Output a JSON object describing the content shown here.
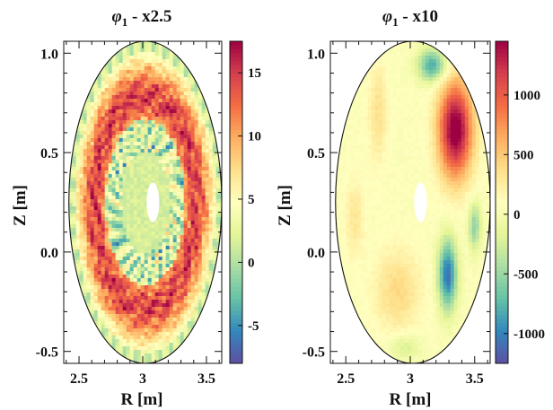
{
  "chart_data": [
    {
      "type": "heatmap",
      "title_symbol": "φ",
      "title_subscript": "1",
      "title_suffix": " - x2.5",
      "xlabel": "R [m]",
      "ylabel": "Z [m]",
      "xlim": [
        2.38,
        3.62
      ],
      "ylim": [
        -0.56,
        1.06
      ],
      "xticks": [
        2.5,
        3.0,
        3.5
      ],
      "xtick_labels": [
        "2.5",
        "3",
        "3.5"
      ],
      "yticks": [
        -0.5,
        0.0,
        0.5,
        1.0
      ],
      "ytick_labels": [
        "-0.5",
        "0.0",
        "0.5",
        "1.0"
      ],
      "colorbar": {
        "min": -8,
        "max": 17.5,
        "ticks": [
          -5,
          0,
          5,
          10,
          15
        ],
        "tick_labels": [
          "-5",
          "0",
          "5",
          "10",
          "15"
        ]
      },
      "colormap": "Spectral_r",
      "pattern": "ring",
      "domain": {
        "center_R": 3.02,
        "center_Z": 0.25,
        "half_width_R": 0.6,
        "half_height_Z": 0.81,
        "hole_R": 3.08,
        "hole_Z": 0.25,
        "hole_half_width": 0.05,
        "hole_half_height": 0.1
      }
    },
    {
      "type": "heatmap",
      "title_symbol": "φ",
      "title_subscript": "1",
      "title_suffix": " - x10",
      "xlabel": "R [m]",
      "ylabel": "Z [m]",
      "xlim": [
        2.38,
        3.62
      ],
      "ylim": [
        -0.56,
        1.06
      ],
      "xticks": [
        2.5,
        3.0,
        3.5
      ],
      "xtick_labels": [
        "2.5",
        "3",
        "3.5"
      ],
      "yticks": [
        -0.5,
        0.0,
        0.5,
        1.0
      ],
      "ytick_labels": [
        "-0.5",
        "0.0",
        "0.5",
        "1.0"
      ],
      "colorbar": {
        "min": -1250,
        "max": 1450,
        "ticks": [
          -1000,
          -500,
          0,
          500,
          1000
        ],
        "tick_labels": [
          "-1000",
          "-500",
          "0",
          "500",
          "1000"
        ]
      },
      "colormap": "Spectral_r",
      "pattern": "blobs",
      "domain": {
        "center_R": 3.02,
        "center_Z": 0.25,
        "half_width_R": 0.6,
        "half_height_Z": 0.81,
        "hole_R": 3.08,
        "hole_Z": 0.25,
        "hole_half_width": 0.05,
        "hole_half_height": 0.1
      }
    }
  ]
}
